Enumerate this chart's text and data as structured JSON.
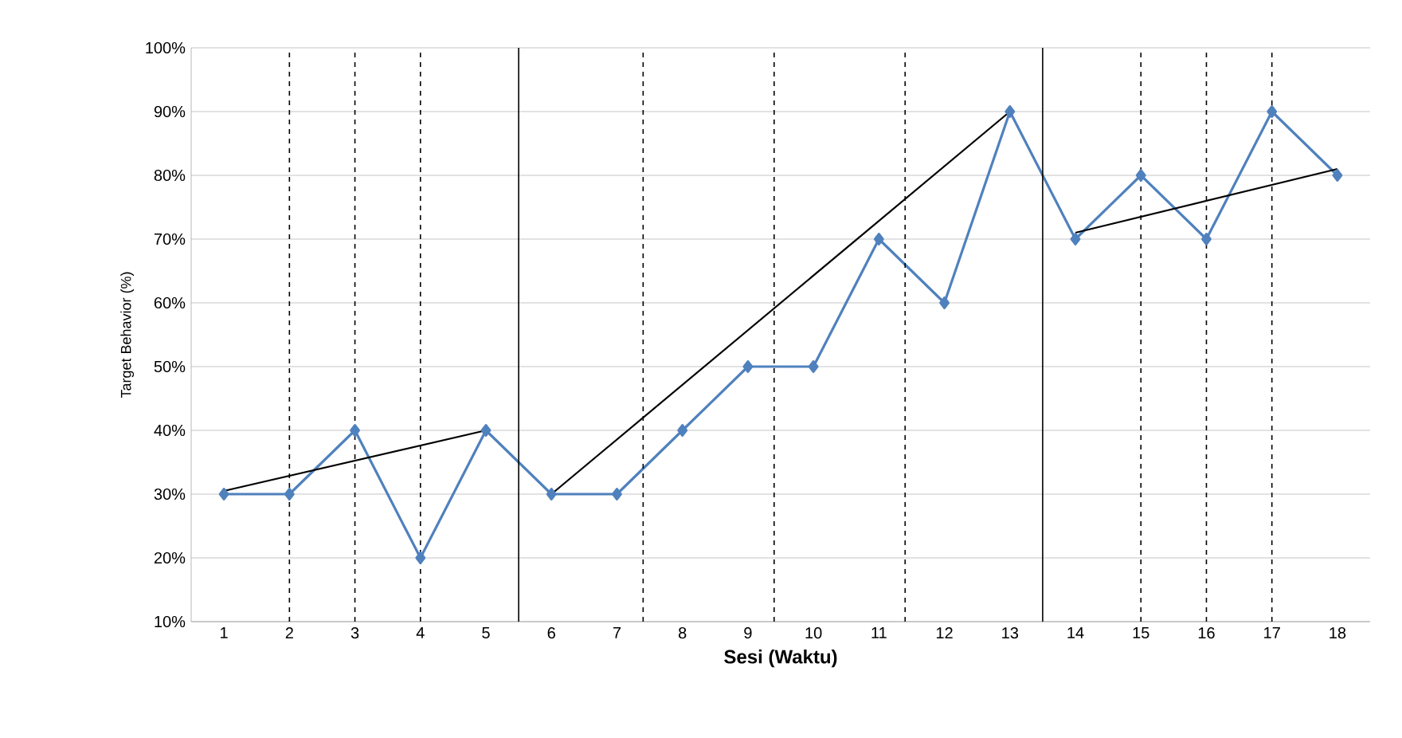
{
  "chart_data": {
    "type": "line",
    "xlabel": "Sesi (Waktu)",
    "ylabel": "Target Behavior (%)",
    "x": [
      1,
      2,
      3,
      4,
      5,
      6,
      7,
      8,
      9,
      10,
      11,
      12,
      13,
      14,
      15,
      16,
      17,
      18
    ],
    "xlim": [
      0.5,
      18.5
    ],
    "xticks": [
      1,
      2,
      3,
      4,
      5,
      6,
      7,
      8,
      9,
      10,
      11,
      12,
      13,
      14,
      15,
      16,
      17,
      18
    ],
    "ylim": [
      10,
      100
    ],
    "yticks": [
      {
        "value": 10,
        "label": "10%"
      },
      {
        "value": 20,
        "label": "20%"
      },
      {
        "value": 30,
        "label": "30%"
      },
      {
        "value": 40,
        "label": "40%"
      },
      {
        "value": 50,
        "label": "50%"
      },
      {
        "value": 60,
        "label": "60%"
      },
      {
        "value": 70,
        "label": "70%"
      },
      {
        "value": 80,
        "label": "80%"
      },
      {
        "value": 90,
        "label": "90%"
      },
      {
        "value": 100,
        "label": "100%"
      }
    ],
    "grid": "y",
    "marker": "diamond",
    "line_style": "solid",
    "series": [
      {
        "color": "#4f81bd",
        "values": [
          30,
          30,
          40,
          20,
          40,
          30,
          30,
          40,
          50,
          50,
          70,
          60,
          90,
          70,
          80,
          70,
          90,
          80
        ]
      },
      {
        "type": "line",
        "color": "#000000",
        "marker": "none",
        "x": [
          1,
          5
        ],
        "values": [
          30.5,
          40
        ]
      },
      {
        "type": "line",
        "color": "#000000",
        "marker": "none",
        "x": [
          6,
          13
        ],
        "values": [
          30,
          90
        ]
      },
      {
        "type": "line",
        "color": "#000000",
        "marker": "none",
        "x": [
          14,
          18
        ],
        "values": [
          71,
          81
        ]
      }
    ],
    "ref_lines": [
      {
        "axis": "x",
        "value": 5.5,
        "line_style": "solid",
        "color": "#000000"
      },
      {
        "axis": "x",
        "value": 13.5,
        "line_style": "solid",
        "color": "#000000"
      },
      {
        "axis": "x",
        "value": 2,
        "line_style": "dashed",
        "color": "#000000"
      },
      {
        "axis": "x",
        "value": 3,
        "line_style": "dashed",
        "color": "#000000"
      },
      {
        "axis": "x",
        "value": 4,
        "line_style": "dashed",
        "color": "#000000"
      },
      {
        "axis": "x",
        "value": 7.4,
        "line_style": "dashed",
        "color": "#000000"
      },
      {
        "axis": "x",
        "value": 9.4,
        "line_style": "dashed",
        "color": "#000000"
      },
      {
        "axis": "x",
        "value": 11.4,
        "line_style": "dashed",
        "color": "#000000"
      },
      {
        "axis": "x",
        "value": 15,
        "line_style": "dashed",
        "color": "#000000"
      },
      {
        "axis": "x",
        "value": 16,
        "line_style": "dashed",
        "color": "#000000"
      },
      {
        "axis": "x",
        "value": 17,
        "line_style": "dashed",
        "color": "#000000"
      }
    ]
  }
}
